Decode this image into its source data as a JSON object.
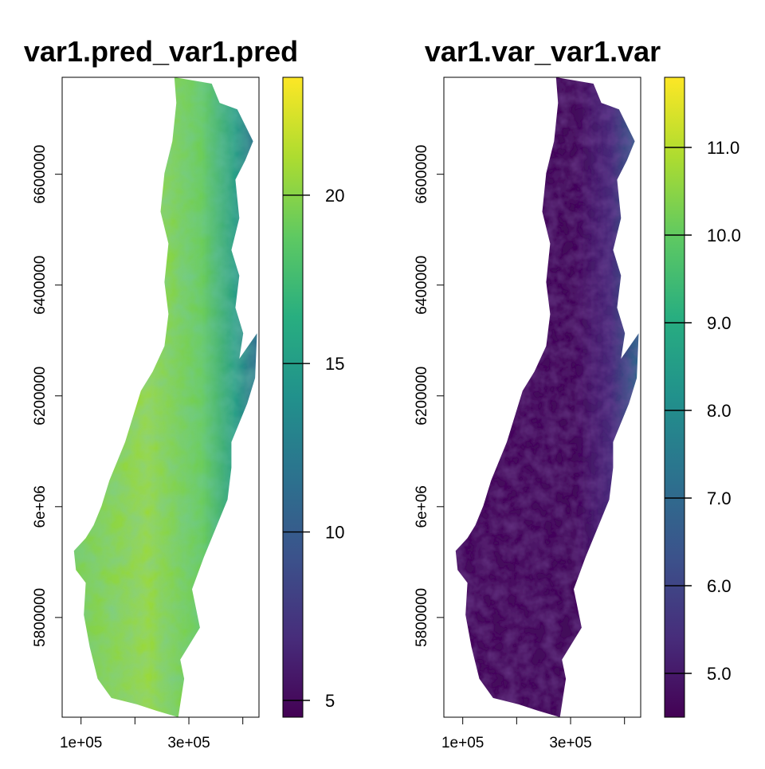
{
  "figure": {
    "background": "#ffffff"
  },
  "chart_data": [
    {
      "type": "heatmap",
      "title": "var1.pred_var1.pred",
      "x_ticks": [
        {
          "value": 100000,
          "label": "1e+05"
        },
        {
          "value": 200000,
          "label": ""
        },
        {
          "value": 300000,
          "label": "3e+05"
        },
        {
          "value": 400000,
          "label": ""
        }
      ],
      "y_ticks": [
        {
          "value": 5800000,
          "label": "5800000"
        },
        {
          "value": 6000000,
          "label": "6e+06"
        },
        {
          "value": 6200000,
          "label": "6200000"
        },
        {
          "value": 6400000,
          "label": "6400000"
        },
        {
          "value": 6600000,
          "label": "6600000"
        }
      ],
      "xlim": [
        65000,
        430000
      ],
      "ylim": [
        5620000,
        6775000
      ],
      "colorbar": {
        "colormap": "viridis",
        "range": [
          4.5,
          23.5
        ],
        "ticks": [
          {
            "value": 5,
            "label": "5"
          },
          {
            "value": 10,
            "label": "10"
          },
          {
            "value": 15,
            "label": "15"
          },
          {
            "value": 20,
            "label": "20"
          }
        ]
      },
      "value_pattern": "mostly 16–22 (green/yellow) across the valley and coast, lower values 8–13 (teal/blue) along the eastern Andes margin"
    },
    {
      "type": "heatmap",
      "title": "var1.var_var1.var",
      "x_ticks": [
        {
          "value": 100000,
          "label": "1e+05"
        },
        {
          "value": 200000,
          "label": ""
        },
        {
          "value": 300000,
          "label": "3e+05"
        },
        {
          "value": 400000,
          "label": ""
        }
      ],
      "y_ticks": [
        {
          "value": 5800000,
          "label": "5800000"
        },
        {
          "value": 6000000,
          "label": "6e+06"
        },
        {
          "value": 6200000,
          "label": "6200000"
        },
        {
          "value": 6400000,
          "label": "6400000"
        },
        {
          "value": 6600000,
          "label": "6600000"
        }
      ],
      "xlim": [
        65000,
        430000
      ],
      "ylim": [
        5620000,
        6775000
      ],
      "colorbar": {
        "colormap": "viridis",
        "range": [
          4.5,
          11.8
        ],
        "ticks": [
          {
            "value": 5.0,
            "label": "5.0"
          },
          {
            "value": 6.0,
            "label": "6.0"
          },
          {
            "value": 7.0,
            "label": "7.0"
          },
          {
            "value": 8.0,
            "label": "8.0"
          },
          {
            "value": 9.0,
            "label": "9.0"
          },
          {
            "value": 10.0,
            "label": "10.0"
          },
          {
            "value": 11.0,
            "label": "11.0"
          }
        ]
      },
      "value_pattern": "mostly 4.5–5.0 (dark purple) across the region, rising to 6–9 (blue/teal) along the eastern Andes margin"
    }
  ]
}
